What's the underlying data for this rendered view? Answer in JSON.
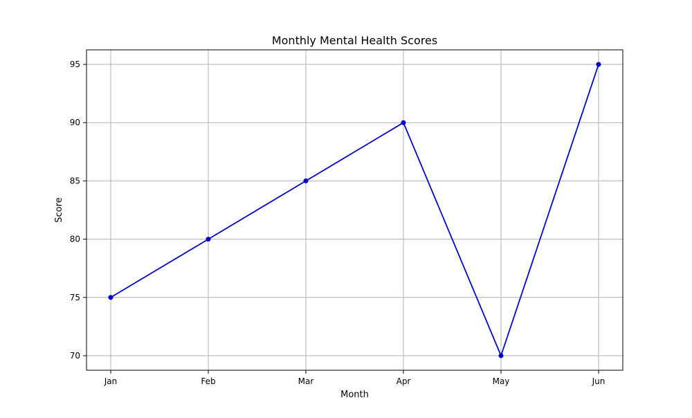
{
  "chart_data": {
    "type": "line",
    "title": "Monthly Mental Health Scores",
    "xlabel": "Month",
    "ylabel": "Score",
    "categories": [
      "Jan",
      "Feb",
      "Mar",
      "Apr",
      "May",
      "Jun"
    ],
    "series": [
      {
        "values": [
          75,
          80,
          85,
          90,
          70,
          95
        ],
        "color": "#0000cc"
      }
    ],
    "yticks": [
      "70",
      "75",
      "80",
      "85",
      "90",
      "95"
    ],
    "ylim": [
      68.75,
      96.25
    ],
    "grid": true,
    "marker": "circle"
  }
}
